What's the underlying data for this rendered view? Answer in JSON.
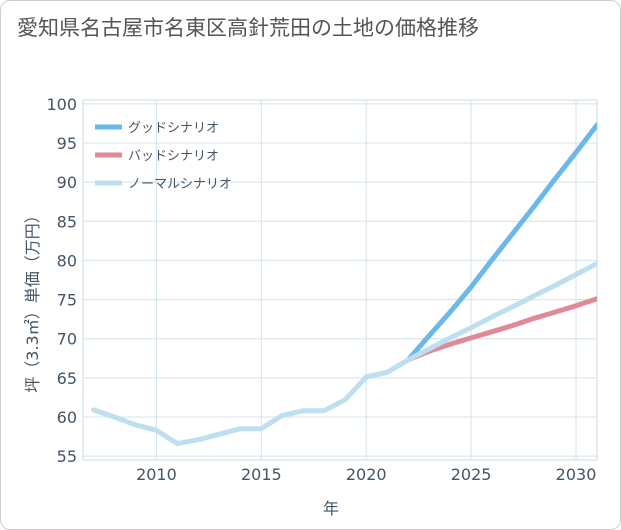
{
  "page": {
    "title": "愛知県名古屋市名東区高針荒田の土地の価格推移"
  },
  "chart_data": {
    "type": "line",
    "title": "愛知県名古屋市名東区高針荒田の土地の価格推移",
    "xlabel": "年",
    "ylabel": "坪（3.3㎡）単価（万円）",
    "xlim": [
      2006.5,
      2031
    ],
    "ylim": [
      54.5,
      100.5
    ],
    "x_ticks": [
      2010,
      2015,
      2020,
      2025,
      2030
    ],
    "y_ticks": [
      55,
      60,
      65,
      70,
      75,
      80,
      85,
      90,
      95,
      100
    ],
    "grid": true,
    "legend_position": "top-left",
    "series": [
      {
        "name": "グッドシナリオ",
        "color": "#6cb8ea",
        "x": [
          2022,
          2023,
          2024,
          2025,
          2026,
          2027,
          2028,
          2029,
          2030,
          2031
        ],
        "y": [
          67.3,
          70.4,
          73.4,
          76.6,
          80.1,
          83.5,
          86.9,
          90.4,
          93.8,
          97.3
        ]
      },
      {
        "name": "バッドシナリオ",
        "color": "#e08a96",
        "x": [
          2022,
          2023,
          2024,
          2025,
          2026,
          2027,
          2028,
          2029,
          2030,
          2031
        ],
        "y": [
          67.3,
          68.4,
          69.3,
          70.1,
          70.9,
          71.7,
          72.6,
          73.4,
          74.2,
          75.1
        ]
      },
      {
        "name": "ノーマルシナリオ",
        "color": "#bddff0",
        "x": [
          2007,
          2008,
          2009,
          2010,
          2011,
          2012,
          2013,
          2014,
          2015,
          2016,
          2017,
          2018,
          2019,
          2020,
          2021,
          2022,
          2023,
          2024,
          2025,
          2026,
          2027,
          2028,
          2029,
          2030,
          2031
        ],
        "y": [
          60.9,
          60.0,
          59.0,
          58.3,
          56.6,
          57.1,
          57.8,
          58.5,
          58.5,
          60.2,
          60.8,
          60.8,
          62.2,
          65.1,
          65.7,
          67.3,
          68.7,
          70.1,
          71.4,
          72.8,
          74.1,
          75.5,
          76.8,
          78.2,
          79.6
        ]
      }
    ]
  }
}
